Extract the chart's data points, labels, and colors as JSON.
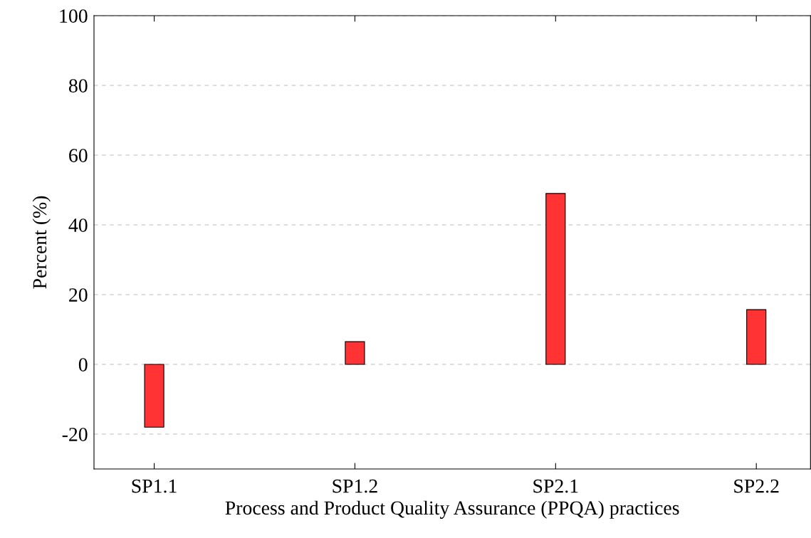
{
  "chart_data": {
    "type": "bar",
    "xlabel": "Process and Product Quality Assurance (PPQA) practices",
    "ylabel": "Percent (%)",
    "categories": [
      "SP1.1",
      "SP1.2",
      "SP2.1",
      "SP2.2"
    ],
    "values": [
      -18,
      6.5,
      49,
      15.7
    ],
    "color": "#ff3333",
    "ylim": [
      -30,
      100
    ],
    "yticks": [
      -20,
      0,
      20,
      40,
      60,
      80,
      100
    ],
    "grid": "y",
    "line_style": "dashed"
  }
}
